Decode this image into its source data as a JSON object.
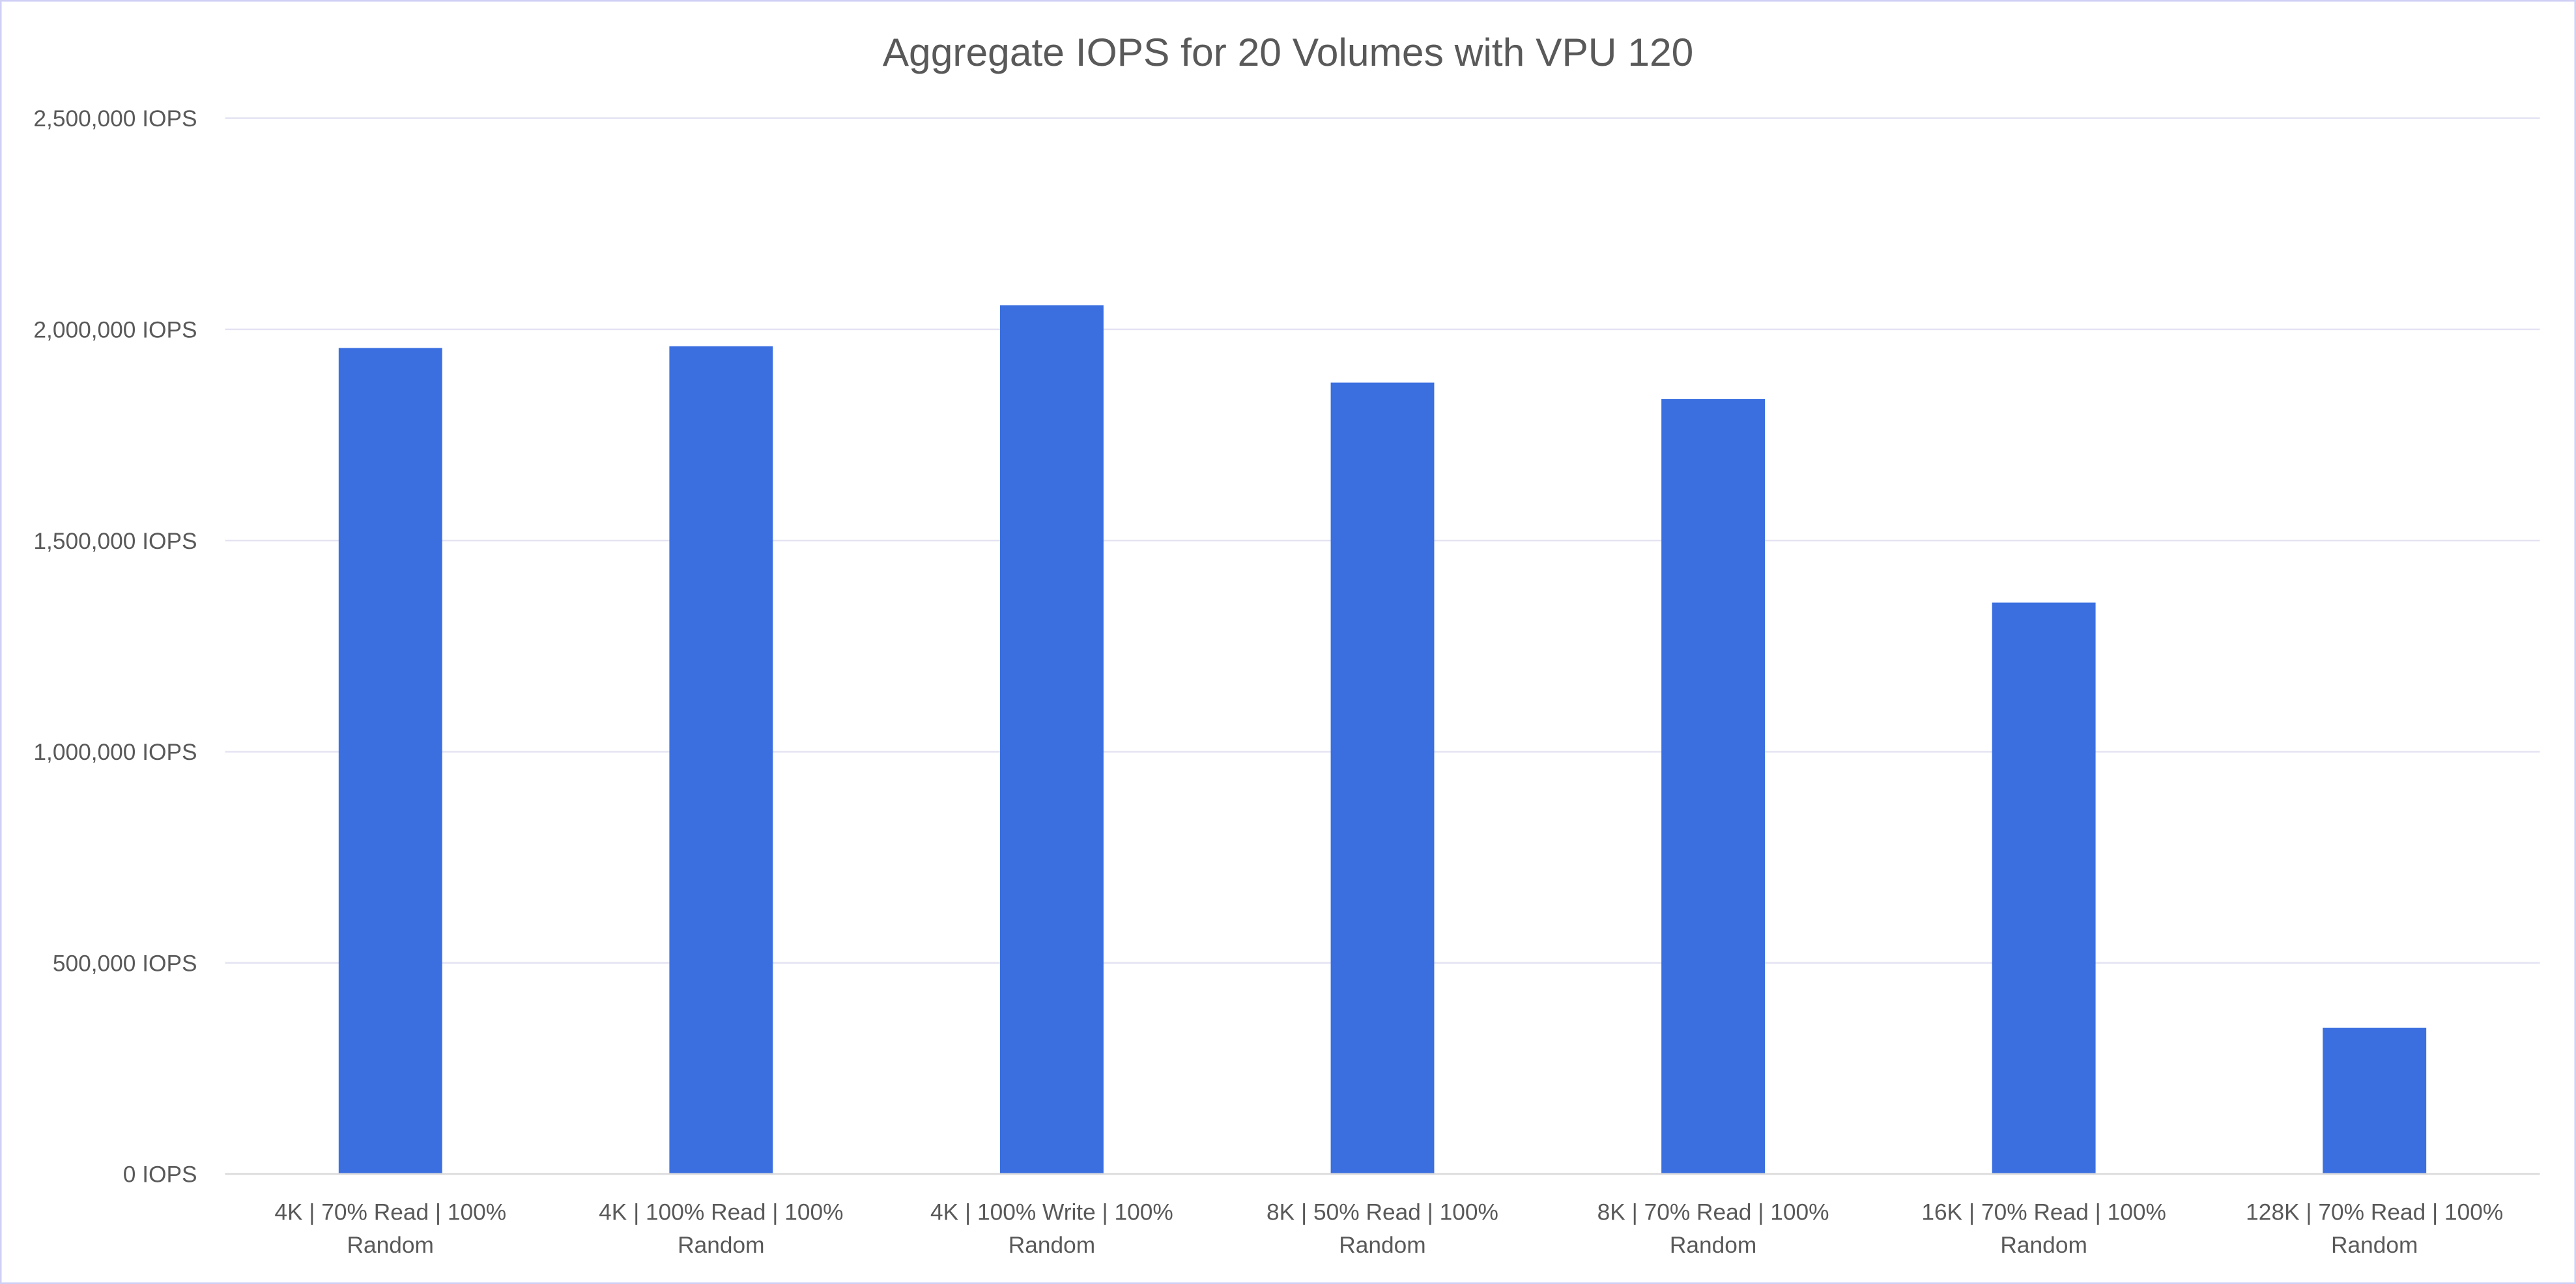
{
  "chart_data": {
    "type": "bar",
    "title": "Aggregate IOPS for 20 Volumes with VPU 120",
    "xlabel": "",
    "ylabel": "",
    "categories": [
      [
        "4K | 70% Read | 100%",
        "Random"
      ],
      [
        "4K | 100% Read | 100%",
        "Random"
      ],
      [
        "4K | 100% Write | 100%",
        "Random"
      ],
      [
        "8K | 50% Read | 100%",
        "Random"
      ],
      [
        "8K | 70% Read | 100%",
        "Random"
      ],
      [
        "16K | 70% Read | 100%",
        "Random"
      ],
      [
        "128K | 70% Read | 100%",
        "Random"
      ]
    ],
    "values": [
      1956000,
      1960000,
      2057000,
      1874000,
      1835000,
      1353000,
      346000
    ],
    "ylim": [
      0,
      2500000
    ],
    "yticks": [
      0,
      500000,
      1000000,
      1500000,
      2000000,
      2500000
    ],
    "ytick_labels": [
      "0 IOPS",
      "500,000 IOPS",
      "1,000,000 IOPS",
      "1,500,000 IOPS",
      "2,000,000 IOPS",
      "2,500,000 IOPS"
    ],
    "grid": true,
    "legend": "none",
    "colors": {
      "bar": "#3b6fe0",
      "grid": "#e3e3f3",
      "border": "#d0d0f5",
      "text": "#595959"
    }
  }
}
